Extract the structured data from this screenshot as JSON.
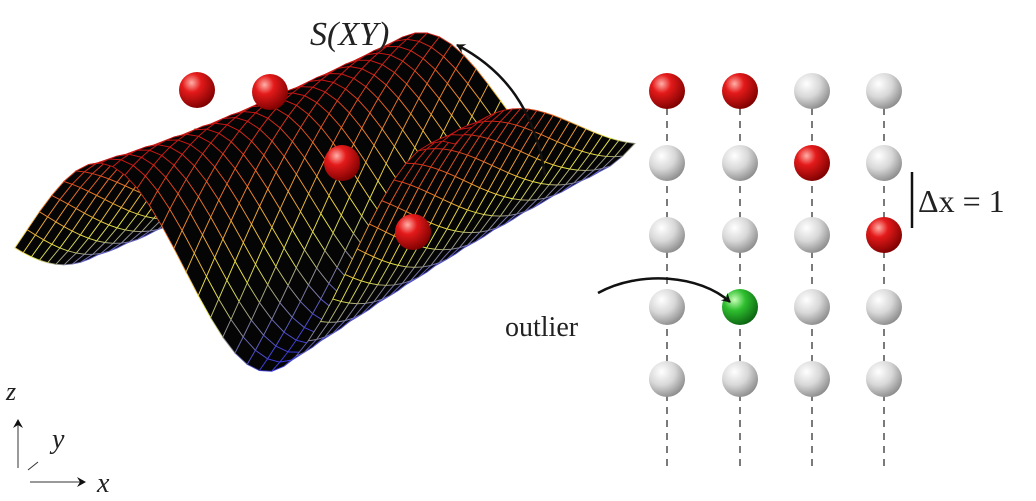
{
  "labels": {
    "surface": "S(XY)",
    "outlier": "outlier",
    "spacing": "Δx = 1",
    "axis_z": "z",
    "axis_y": "y",
    "axis_x": "x"
  }
}
